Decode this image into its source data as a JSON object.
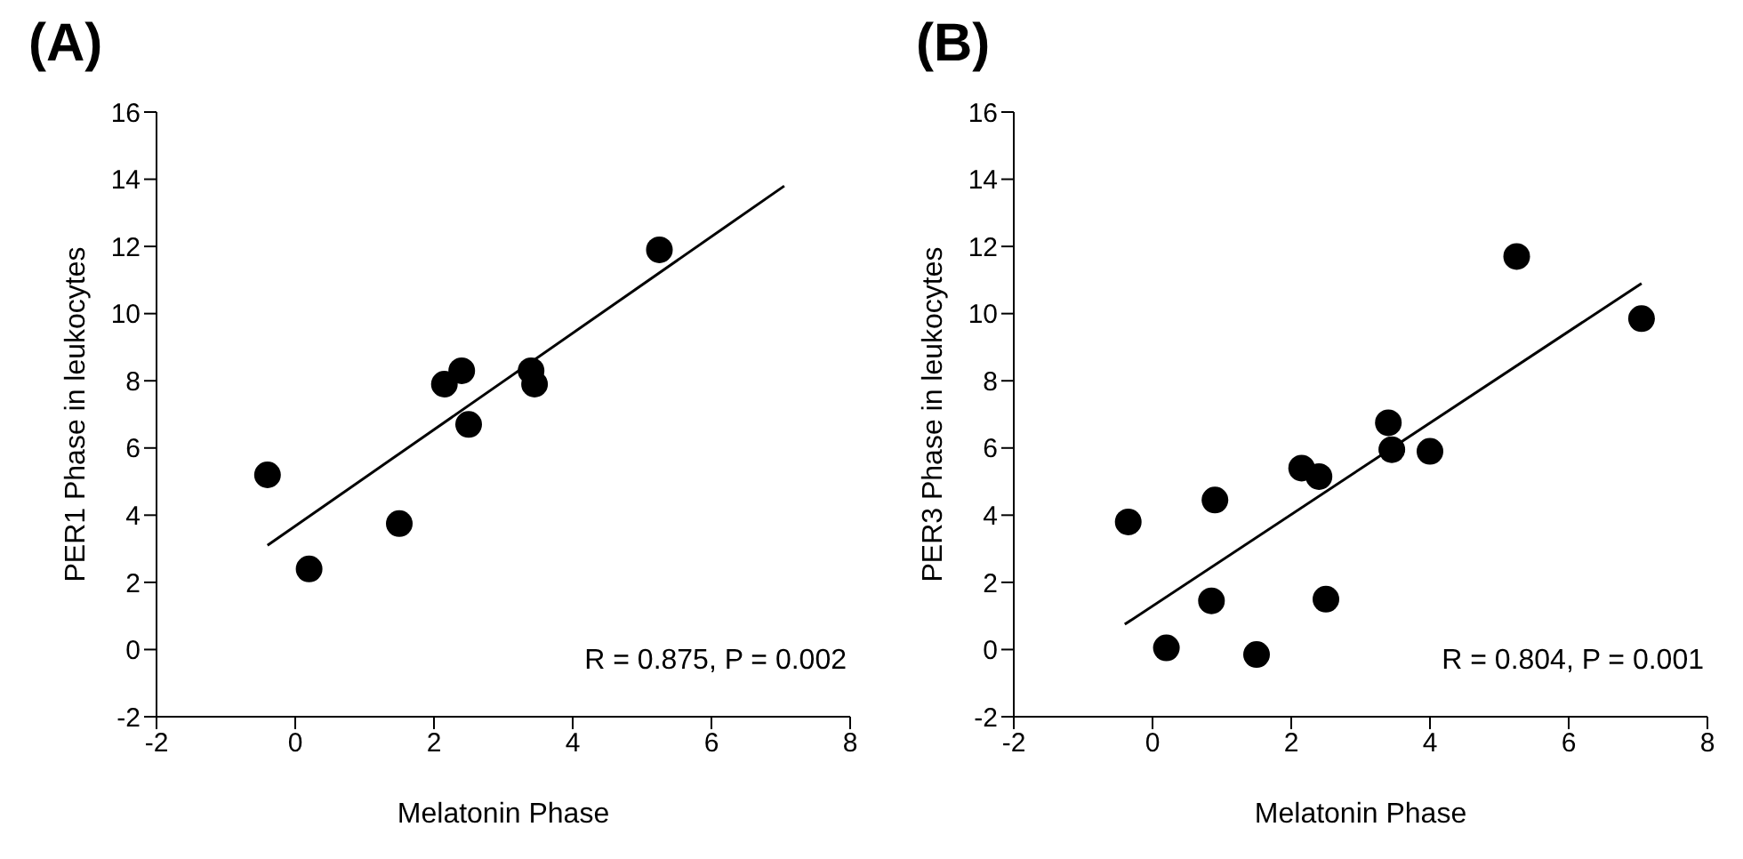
{
  "chart_data": [
    {
      "type": "scatter",
      "title": "(A)",
      "xlabel": "Melatonin Phase",
      "ylabel": "PER1 Phase in leukocytes",
      "xlim": [
        -2,
        8
      ],
      "xticks": [
        -2,
        0,
        2,
        4,
        6,
        8
      ],
      "ylim": [
        -2,
        16
      ],
      "yticks": [
        -2,
        0,
        2,
        4,
        6,
        8,
        10,
        12,
        14,
        16
      ],
      "grid": false,
      "legend": false,
      "annotations": [
        "R = 0.875, P = 0.002"
      ],
      "series": [
        {
          "marker": "circle",
          "color": "#000000",
          "x": [
            -0.4,
            0.2,
            1.5,
            2.15,
            2.4,
            2.5,
            3.4,
            3.45,
            5.25
          ],
          "values": [
            5.2,
            2.4,
            3.75,
            7.9,
            8.3,
            6.7,
            8.3,
            7.9,
            11.9
          ]
        },
        {
          "type": "line",
          "color": "#000000",
          "x": [
            -0.4,
            7.05
          ],
          "values": [
            3.1,
            13.8
          ]
        }
      ]
    },
    {
      "type": "scatter",
      "title": "(B)",
      "xlabel": "Melatonin Phase",
      "ylabel": "PER3 Phase in leukocytes",
      "xlim": [
        -2,
        8
      ],
      "xticks": [
        -2,
        0,
        2,
        4,
        6,
        8
      ],
      "ylim": [
        -2,
        16
      ],
      "yticks": [
        -2,
        0,
        2,
        4,
        6,
        8,
        10,
        12,
        14,
        16
      ],
      "grid": false,
      "legend": false,
      "annotations": [
        "R = 0.804, P = 0.001"
      ],
      "series": [
        {
          "marker": "circle",
          "color": "#000000",
          "x": [
            -0.35,
            0.2,
            0.85,
            0.9,
            1.5,
            2.15,
            2.4,
            2.5,
            3.4,
            3.45,
            4.0,
            5.25,
            7.05
          ],
          "values": [
            3.8,
            0.05,
            1.45,
            4.45,
            -0.15,
            5.4,
            5.15,
            1.5,
            6.75,
            5.95,
            5.9,
            11.7,
            9.85
          ]
        },
        {
          "type": "line",
          "color": "#000000",
          "x": [
            -0.4,
            7.05
          ],
          "values": [
            0.75,
            10.9
          ]
        }
      ]
    }
  ]
}
